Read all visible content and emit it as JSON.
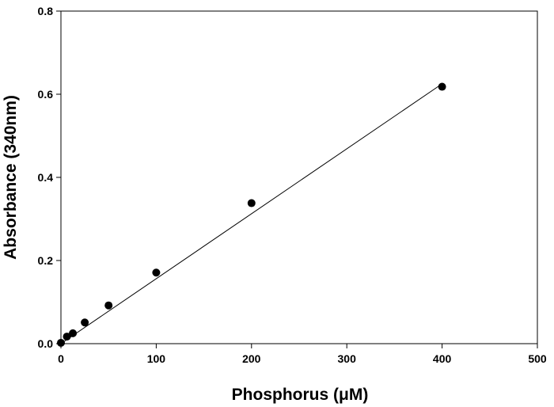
{
  "chart_data": {
    "type": "scatter",
    "title": "",
    "xlabel": "Phosphorus (μM)",
    "ylabel": "Absorbance (340nm)",
    "xlim": [
      0,
      500
    ],
    "ylim": [
      0,
      0.8
    ],
    "xticks": [
      0,
      100,
      200,
      300,
      400,
      500
    ],
    "yticks": [
      0.0,
      0.2,
      0.4,
      0.6,
      0.8
    ],
    "xtick_labels": [
      "0",
      "100",
      "200",
      "300",
      "400",
      "500"
    ],
    "ytick_labels": [
      "0.0",
      "0.2",
      "0.4",
      "0.6",
      "0.8"
    ],
    "grid": false,
    "legend": "none",
    "series": [
      {
        "x": [
          0,
          6.25,
          12.5,
          25,
          50,
          100,
          200,
          400
        ],
        "y": [
          0.002,
          0.017,
          0.025,
          0.051,
          0.092,
          0.171,
          0.338,
          0.618
        ],
        "marker": "circle",
        "color": "#000000"
      }
    ],
    "fit_line": {
      "x": [
        0,
        400
      ],
      "y": [
        0.0,
        0.625
      ],
      "color": "#000000"
    }
  }
}
